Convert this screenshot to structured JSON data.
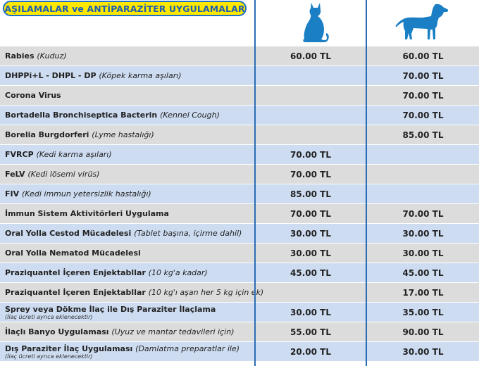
{
  "header": {
    "title": "AŞILAMALAR ve ANTİPARAZİTER UYGULAMALAR",
    "cat_icon": "cat-icon",
    "dog_icon": "dog-icon"
  },
  "colors": {
    "row_gray": "#dcdcdc",
    "row_blue": "#cddcf1",
    "divider": "#2a6db5",
    "badge_bg": "#ffe800",
    "badge_text": "#1d5fb3",
    "icon": "#1a7fc4"
  },
  "rows": [
    {
      "name": "Rabies",
      "note": "(Kuduz)",
      "sub": "",
      "cat": "60.00 TL",
      "dog": "60.00 TL"
    },
    {
      "name": "DHPPi+L - DHPL - DP",
      "note": "(Köpek karma aşıları)",
      "sub": "",
      "cat": "",
      "dog": "70.00 TL"
    },
    {
      "name": "Corona Virus",
      "note": "",
      "sub": "",
      "cat": "",
      "dog": "70.00 TL"
    },
    {
      "name": "Bortadella Bronchiseptica Bacterin",
      "note": "(Kennel Cough)",
      "sub": "",
      "cat": "",
      "dog": "70.00 TL"
    },
    {
      "name": "Borelia Burgdorferi",
      "note": "(Lyme hastalığı)",
      "sub": "",
      "cat": "",
      "dog": "85.00 TL"
    },
    {
      "name": "FVRCP",
      "note": "(Kedi karma aşıları)",
      "sub": "",
      "cat": "70.00 TL",
      "dog": ""
    },
    {
      "name": "FeLV",
      "note": "(Kedi lösemi virüs)",
      "sub": "",
      "cat": "70.00 TL",
      "dog": ""
    },
    {
      "name": "FIV",
      "note": "(Kedi immun yetersizlik hastalığı)",
      "sub": "",
      "cat": "85.00 TL",
      "dog": ""
    },
    {
      "name": "İmmun Sistem Aktivitörleri Uygulama",
      "note": "",
      "sub": "",
      "cat": "70.00 TL",
      "dog": "70.00 TL"
    },
    {
      "name": "Oral Yolla Cestod Mücadelesi",
      "note": "(Tablet başına, içirme dahil)",
      "sub": "",
      "cat": "30.00 TL",
      "dog": "30.00 TL"
    },
    {
      "name": "Oral Yolla Nematod Mücadelesi",
      "note": "",
      "sub": "",
      "cat": "30.00 TL",
      "dog": "30.00 TL"
    },
    {
      "name": "Praziquantel İçeren Enjektabllar",
      "note": "(10 kg'a kadar)",
      "sub": "",
      "cat": "45.00 TL",
      "dog": "45.00 TL"
    },
    {
      "name": "Praziquantel İçeren Enjektabllar",
      "note": "(10 kg'ı aşan her 5 kg için ek)",
      "sub": "",
      "cat": "",
      "dog": "17.00 TL"
    },
    {
      "name": "Sprey veya Dökme İlaç ile Dış Paraziter İlaçlama",
      "note": "",
      "sub": "(İlaç ücreti ayrıca eklenecektir)",
      "cat": "30.00 TL",
      "dog": "35.00 TL"
    },
    {
      "name": "İlaçlı Banyo Uygulaması",
      "note": "(Uyuz ve mantar tedavileri için)",
      "sub": "",
      "cat": "55.00 TL",
      "dog": "90.00 TL"
    },
    {
      "name": "Dış Paraziter İlaç Uygulaması",
      "note": "(Damlatma preparatlar ile)",
      "sub": "(İlaç ücreti ayrıca eklenecektir)",
      "cat": "20.00 TL",
      "dog": "30.00 TL"
    }
  ]
}
